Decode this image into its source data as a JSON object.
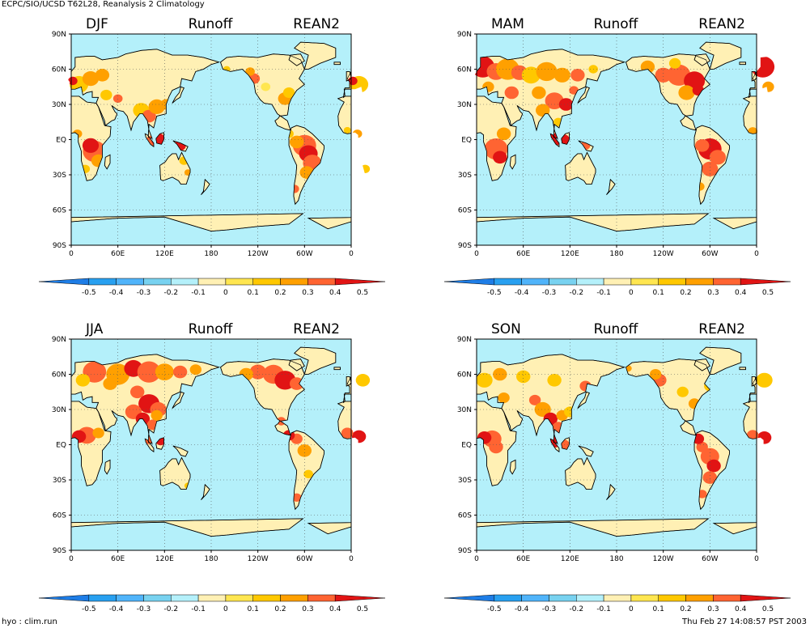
{
  "header": {
    "title": "ECPC/SIO/UCSD T62L28, Reanalysis 2 Climatology"
  },
  "footer": {
    "left": "hyo : clim.run",
    "right": "Thu Feb 27 14:08:57 PST 2003"
  },
  "common": {
    "variable": "Runoff",
    "dataset": "REAN2",
    "lat_ticks": [
      "90N",
      "60N",
      "30N",
      "EQ",
      "30S",
      "60S",
      "90S"
    ],
    "lon_ticks": [
      "0",
      "60E",
      "120E",
      "180",
      "120W",
      "60W",
      "0"
    ],
    "colorbar_labels": [
      "-0.5",
      "-0.4",
      "-0.3",
      "-0.2",
      "-0.1",
      "0",
      "0.1",
      "0.2",
      "0.3",
      "0.4",
      "0.5"
    ],
    "colorbar_colors": [
      "#1e7de6",
      "#28a0f0",
      "#50b4fa",
      "#78d2f0",
      "#b4f0fa",
      "#fff0b4",
      "#ffe650",
      "#ffc800",
      "#ffa000",
      "#ff6432",
      "#e11414"
    ]
  },
  "colors": {
    "ocean": "#b4f0fa",
    "land": "#fff0b4",
    "low": "#ffe650",
    "mid": "#ffc800",
    "midhigh": "#ffa000",
    "high": "#ff6432",
    "max": "#e11414"
  },
  "panels": [
    {
      "season": "DJF"
    },
    {
      "season": "MAM"
    },
    {
      "season": "JJA"
    },
    {
      "season": "SON"
    }
  ]
}
